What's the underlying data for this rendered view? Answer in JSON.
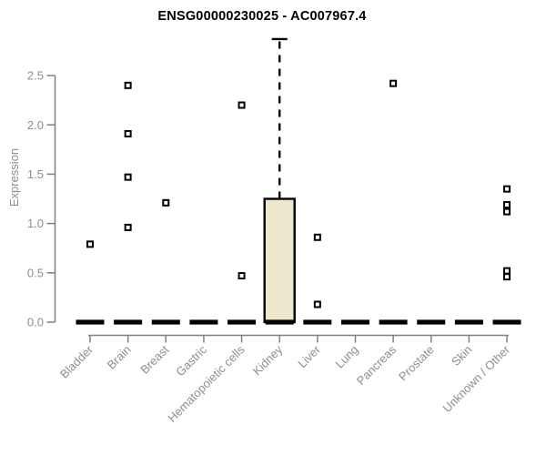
{
  "chart_data": {
    "type": "boxplot",
    "title": "ENSG00000230025 - AC007967.4",
    "xlabel": "",
    "ylabel": "Expression",
    "ylim": [
      0,
      2.9
    ],
    "yticks": [
      0,
      0.5,
      1,
      1.5,
      2,
      2.5
    ],
    "ytick_labels": [
      "0.0",
      "0.5",
      "1.0",
      "1.5",
      "2.0",
      "2.5"
    ],
    "grid": false,
    "legend": "none",
    "categories": [
      "Bladder",
      "Brain",
      "Breast",
      "Gastric",
      "Hematopoietic cells",
      "Kidney",
      "Liver",
      "Lung",
      "Pancreas",
      "Prostate",
      "Skin",
      "Unknown / Other"
    ],
    "boxes": [
      {
        "category": "Bladder",
        "q1": 0,
        "median": 0,
        "q3": 0,
        "whisker_low": 0,
        "whisker_high": 0,
        "outliers": [
          0.79
        ]
      },
      {
        "category": "Brain",
        "q1": 0,
        "median": 0,
        "q3": 0,
        "whisker_low": 0,
        "whisker_high": 0,
        "outliers": [
          2.4,
          1.91,
          1.47,
          0.96
        ]
      },
      {
        "category": "Breast",
        "q1": 0,
        "median": 0,
        "q3": 0,
        "whisker_low": 0,
        "whisker_high": 0,
        "outliers": [
          1.21
        ]
      },
      {
        "category": "Gastric",
        "q1": 0,
        "median": 0,
        "q3": 0,
        "whisker_low": 0,
        "whisker_high": 0,
        "outliers": []
      },
      {
        "category": "Hematopoietic cells",
        "q1": 0,
        "median": 0,
        "q3": 0,
        "whisker_low": 0,
        "whisker_high": 0,
        "outliers": [
          2.2,
          0.47
        ]
      },
      {
        "category": "Kidney",
        "q1": 0,
        "median": 0,
        "q3": 1.25,
        "whisker_low": 0,
        "whisker_high": 2.87,
        "outliers": []
      },
      {
        "category": "Liver",
        "q1": 0,
        "median": 0,
        "q3": 0,
        "whisker_low": 0,
        "whisker_high": 0,
        "outliers": [
          0.86,
          0.18
        ]
      },
      {
        "category": "Lung",
        "q1": 0,
        "median": 0,
        "q3": 0,
        "whisker_low": 0,
        "whisker_high": 0,
        "outliers": []
      },
      {
        "category": "Pancreas",
        "q1": 0,
        "median": 0,
        "q3": 0,
        "whisker_low": 0,
        "whisker_high": 0,
        "outliers": [
          2.42
        ]
      },
      {
        "category": "Prostate",
        "q1": 0,
        "median": 0,
        "q3": 0,
        "whisker_low": 0,
        "whisker_high": 0,
        "outliers": []
      },
      {
        "category": "Skin",
        "q1": 0,
        "median": 0,
        "q3": 0,
        "whisker_low": 0,
        "whisker_high": 0,
        "outliers": []
      },
      {
        "category": "Unknown / Other",
        "q1": 0,
        "median": 0,
        "q3": 0,
        "whisker_low": 0,
        "whisker_high": 0,
        "outliers": [
          1.35,
          1.19,
          1.12,
          0.52,
          0.46
        ]
      }
    ],
    "colors": {
      "box_fill": "#ece7cd",
      "box_border": "#000000",
      "median": "#000000",
      "whisker": "#000000",
      "outlier_stroke": "#000000",
      "outlier_fill": "#ffffff",
      "axis_line": "#808080",
      "tick_label": "#8e8e8e",
      "title": "#000000",
      "background": "#ffffff"
    }
  }
}
